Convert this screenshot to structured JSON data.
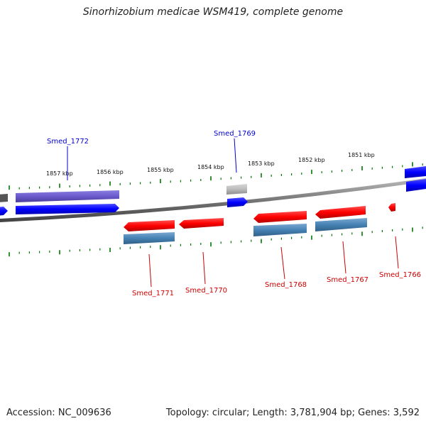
{
  "title": "Sinorhizobium medicae WSM419, complete genome",
  "footer": {
    "accession": "Accession: NC_009636",
    "stats": "Topology: circular; Length: 3,781,904 bp; Genes: 3,592"
  },
  "colors": {
    "forward_gene": "#0000ff",
    "reverse_gene": "#ff0000",
    "forward_annotated": "#6a5acd",
    "reverse_annotated": "#4682b4",
    "pseudo": "#bbbbbb",
    "ticks": "#007700",
    "backbone": "#888888",
    "label_forward": "#0000cc",
    "label_reverse": "#cc0000"
  },
  "scale_labels": [
    "1857 kbp",
    "1856 kbp",
    "1855 kbp",
    "1854 kbp",
    "1853 kbp",
    "1852 kbp",
    "1851 kbp"
  ],
  "genes": [
    {
      "name": "Smed_1772",
      "strand": "forward"
    },
    {
      "name": "Smed_1769",
      "strand": "forward"
    },
    {
      "name": "Smed_1771",
      "strand": "reverse"
    },
    {
      "name": "Smed_1770",
      "strand": "reverse"
    },
    {
      "name": "Smed_1768",
      "strand": "reverse"
    },
    {
      "name": "Smed_1767",
      "strand": "reverse"
    },
    {
      "name": "Smed_1766",
      "strand": "reverse"
    }
  ]
}
